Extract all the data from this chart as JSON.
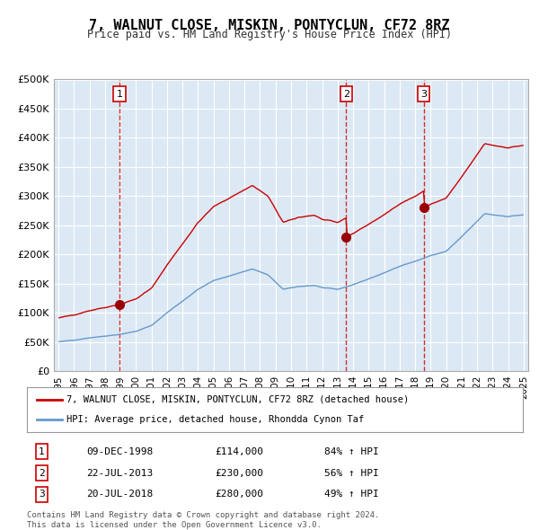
{
  "title": "7, WALNUT CLOSE, MISKIN, PONTYCLUN, CF72 8RZ",
  "subtitle": "Price paid vs. HM Land Registry's House Price Index (HPI)",
  "ylabel": "",
  "bg_color": "#dce9f5",
  "plot_bg_color": "#dce9f5",
  "outer_bg_color": "#ffffff",
  "red_line_color": "#cc0000",
  "blue_line_color": "#6699cc",
  "marker_color": "#990000",
  "dashed_color": "#cc0000",
  "sales": [
    {
      "label": "1",
      "date": "1998-12-09",
      "price": 114000,
      "pct": "84%",
      "x": 1998.94
    },
    {
      "label": "2",
      "date": "2013-07-22",
      "price": 230000,
      "pct": "56%",
      "x": 2013.56
    },
    {
      "label": "3",
      "date": "2018-07-20",
      "price": 280000,
      "pct": "49%",
      "x": 2018.55
    }
  ],
  "legend_entries": [
    {
      "label": "7, WALNUT CLOSE, MISKIN, PONTYCLUN, CF72 8RZ (detached house)",
      "color": "#cc0000"
    },
    {
      "label": "HPI: Average price, detached house, Rhondda Cynon Taf",
      "color": "#6699cc"
    }
  ],
  "footer": [
    "Contains HM Land Registry data © Crown copyright and database right 2024.",
    "This data is licensed under the Open Government Licence v3.0."
  ],
  "ylim": [
    0,
    500000
  ],
  "yticks": [
    0,
    50000,
    100000,
    150000,
    200000,
    250000,
    300000,
    350000,
    400000,
    450000,
    500000
  ],
  "xlim_start": 1994.7,
  "xlim_end": 2025.3
}
